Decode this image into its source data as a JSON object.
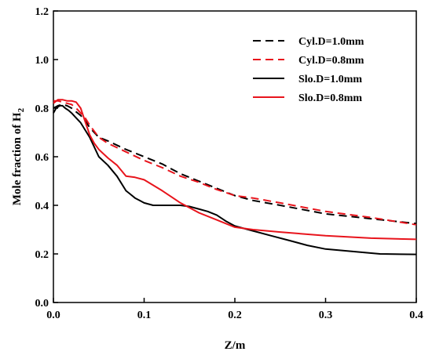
{
  "chart_data": {
    "type": "line",
    "xlabel": "Z/m",
    "ylabel_main": "Mole fraction of H",
    "ylabel_sub": "2",
    "xlim": [
      0.0,
      0.4
    ],
    "ylim": [
      0.0,
      1.2
    ],
    "xticks": [
      "0.0",
      "0.1",
      "0.2",
      "0.3",
      "0.4"
    ],
    "yticks": [
      "0.0",
      "0.2",
      "0.4",
      "0.6",
      "0.8",
      "1.0",
      "1.2"
    ],
    "xtick_values": [
      0.0,
      0.1,
      0.2,
      0.3,
      0.4
    ],
    "ytick_values": [
      0.0,
      0.2,
      0.4,
      0.6,
      0.8,
      1.0,
      1.2
    ],
    "legend_position": "top-right",
    "grid": false,
    "series": [
      {
        "name": "Cyl.D=1.0mm",
        "color": "#000000",
        "dash": "dashed",
        "x": [
          0.0,
          0.005,
          0.01,
          0.015,
          0.02,
          0.025,
          0.03,
          0.035,
          0.04,
          0.05,
          0.06,
          0.08,
          0.1,
          0.12,
          0.14,
          0.16,
          0.18,
          0.2,
          0.22,
          0.25,
          0.3,
          0.35,
          0.4
        ],
        "y": [
          0.8,
          0.81,
          0.815,
          0.81,
          0.8,
          0.785,
          0.77,
          0.75,
          0.72,
          0.68,
          0.665,
          0.63,
          0.6,
          0.57,
          0.53,
          0.5,
          0.47,
          0.44,
          0.42,
          0.4,
          0.365,
          0.345,
          0.325
        ]
      },
      {
        "name": "Cyl.D=0.8mm",
        "color": "#e8141c",
        "dash": "dashed",
        "x": [
          0.0,
          0.005,
          0.01,
          0.015,
          0.02,
          0.025,
          0.03,
          0.035,
          0.04,
          0.05,
          0.06,
          0.08,
          0.1,
          0.12,
          0.14,
          0.16,
          0.18,
          0.2,
          0.22,
          0.25,
          0.3,
          0.35,
          0.4
        ],
        "y": [
          0.83,
          0.83,
          0.825,
          0.82,
          0.815,
          0.8,
          0.78,
          0.76,
          0.73,
          0.68,
          0.655,
          0.62,
          0.585,
          0.555,
          0.52,
          0.495,
          0.465,
          0.44,
          0.43,
          0.41,
          0.375,
          0.35,
          0.32
        ]
      },
      {
        "name": "Slo.D=1.0mm",
        "color": "#000000",
        "dash": "solid",
        "x": [
          0.0,
          0.003,
          0.007,
          0.01,
          0.013,
          0.017,
          0.02,
          0.025,
          0.03,
          0.035,
          0.04,
          0.045,
          0.05,
          0.06,
          0.07,
          0.08,
          0.085,
          0.09,
          0.095,
          0.1,
          0.11,
          0.12,
          0.13,
          0.14,
          0.15,
          0.16,
          0.17,
          0.18,
          0.19,
          0.2,
          0.22,
          0.24,
          0.26,
          0.28,
          0.3,
          0.33,
          0.36,
          0.4
        ],
        "y": [
          0.78,
          0.8,
          0.81,
          0.81,
          0.8,
          0.79,
          0.78,
          0.76,
          0.74,
          0.71,
          0.68,
          0.64,
          0.6,
          0.565,
          0.52,
          0.46,
          0.445,
          0.43,
          0.42,
          0.41,
          0.4,
          0.4,
          0.4,
          0.4,
          0.395,
          0.385,
          0.375,
          0.36,
          0.335,
          0.315,
          0.295,
          0.275,
          0.255,
          0.235,
          0.22,
          0.21,
          0.2,
          0.198
        ]
      },
      {
        "name": "Slo.D=0.8mm",
        "color": "#e8141c",
        "dash": "solid",
        "x": [
          0.0,
          0.005,
          0.01,
          0.015,
          0.02,
          0.025,
          0.03,
          0.035,
          0.04,
          0.045,
          0.05,
          0.06,
          0.07,
          0.08,
          0.09,
          0.1,
          0.12,
          0.14,
          0.16,
          0.18,
          0.2,
          0.22,
          0.25,
          0.3,
          0.35,
          0.4
        ],
        "y": [
          0.82,
          0.835,
          0.835,
          0.83,
          0.83,
          0.825,
          0.8,
          0.745,
          0.69,
          0.655,
          0.63,
          0.595,
          0.565,
          0.52,
          0.515,
          0.505,
          0.46,
          0.41,
          0.37,
          0.34,
          0.31,
          0.3,
          0.29,
          0.275,
          0.265,
          0.26
        ]
      }
    ]
  }
}
